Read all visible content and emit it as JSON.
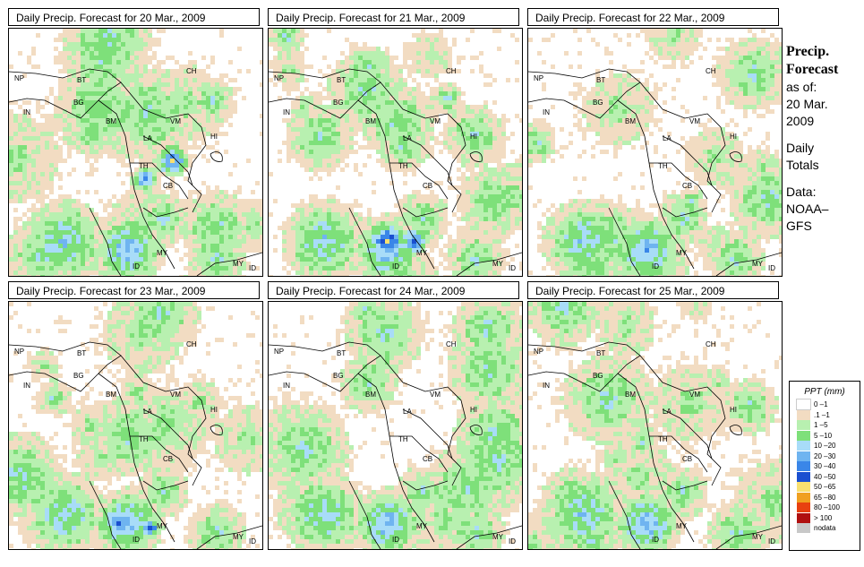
{
  "panels": [
    {
      "title": "Daily Precip. Forecast for  20 Mar., 2009"
    },
    {
      "title": "Daily Precip. Forecast for  21 Mar., 2009"
    },
    {
      "title": "Daily Precip. Forecast for  22 Mar., 2009"
    },
    {
      "title": "Daily Precip. Forecast for  23 Mar., 2009"
    },
    {
      "title": "Daily Precip. Forecast for  24 Mar., 2009"
    },
    {
      "title": "Daily Precip. Forecast for  25 Mar., 2009"
    }
  ],
  "country_labels": [
    "NP",
    "BT",
    "BG",
    "IN",
    "BM",
    "CH",
    "VM",
    "LA",
    "TH",
    "CB",
    "HI",
    "MY",
    "ID",
    "MY",
    "ID"
  ],
  "side": {
    "title1": "Precip.",
    "title2": "Forecast",
    "asof": "as of:",
    "date1": "20 Mar.",
    "date2": "2009",
    "daily": "Daily",
    "totals": "Totals",
    "data_label": "Data:",
    "source1": "NOAA–",
    "source2": "GFS"
  },
  "legend": {
    "title": "PPT (mm)",
    "items": [
      {
        "label": "0 –1",
        "color": "#ffffff"
      },
      {
        "label": ".1 –1",
        "color": "#f2dcc2"
      },
      {
        "label": "1 –5",
        "color": "#b8f0b0"
      },
      {
        "label": "5 –10",
        "color": "#7ee07a"
      },
      {
        "label": "10 –20",
        "color": "#a8dcf8"
      },
      {
        "label": "20 –30",
        "color": "#6fb4f0"
      },
      {
        "label": "30 –40",
        "color": "#3a86e8"
      },
      {
        "label": "40 –50",
        "color": "#1a4fd0"
      },
      {
        "label": "50 –65",
        "color": "#f8e070"
      },
      {
        "label": "65 –80",
        "color": "#f0a020"
      },
      {
        "label": "80 –100",
        "color": "#e84010"
      },
      {
        "label": "> 100",
        "color": "#b01010"
      },
      {
        "label": "nodata",
        "color": "#c8c8c8"
      }
    ]
  }
}
